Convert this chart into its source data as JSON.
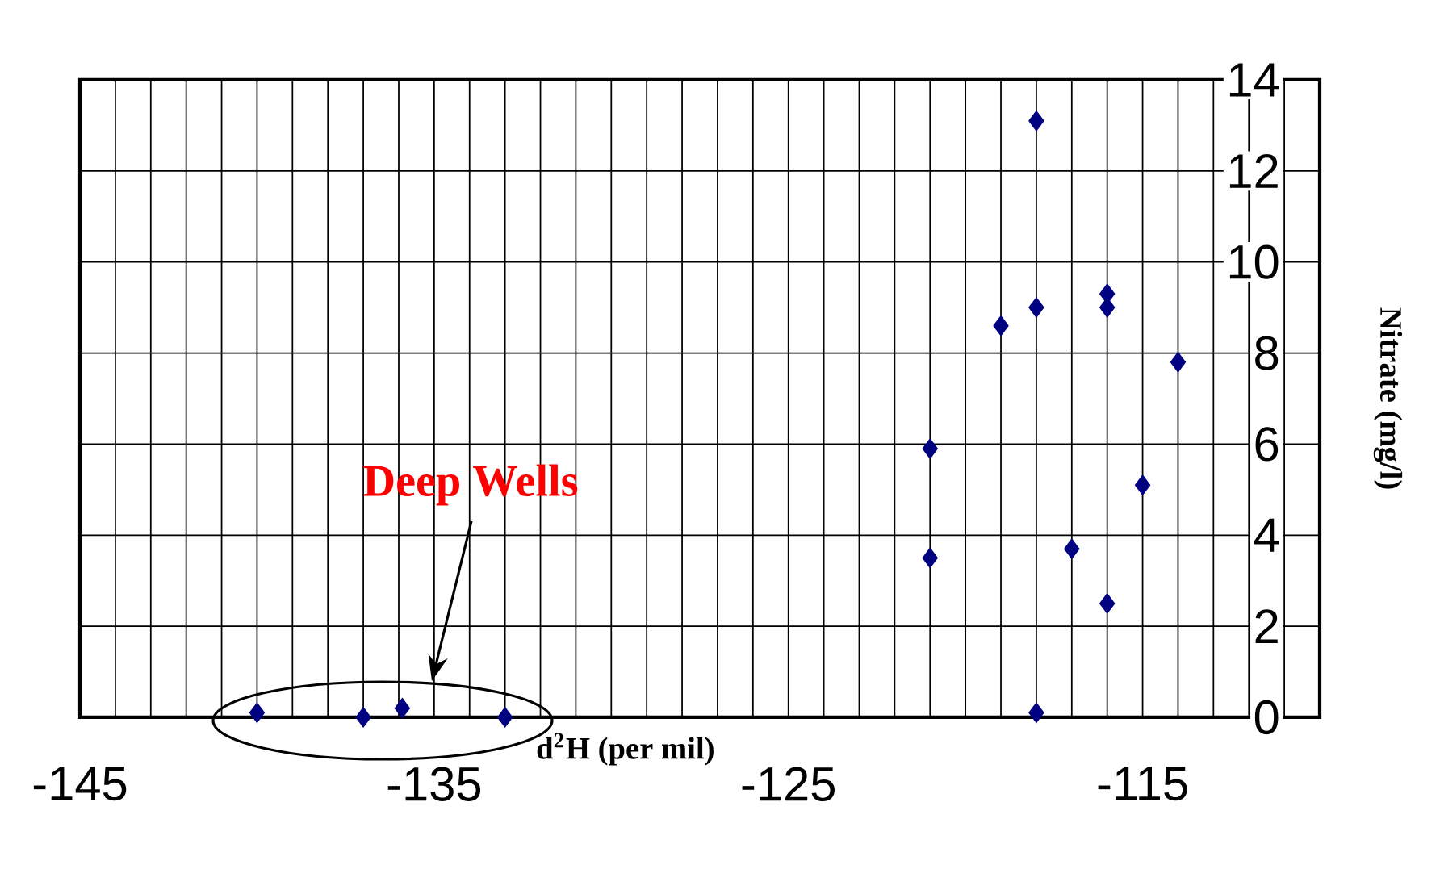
{
  "chart_data": {
    "type": "scatter",
    "xlabel": "d$^{2}$H (per mil)",
    "ylabel": "Nitrate (mg/l)",
    "x": [
      -140,
      -137,
      -135.9,
      -133,
      -121,
      -121,
      -119,
      -118,
      -118,
      -118,
      -117,
      -116,
      -116,
      -116,
      -115,
      -114
    ],
    "values": [
      0.1,
      0,
      0.2,
      0,
      5.9,
      3.5,
      8.6,
      13.1,
      9.0,
      0.1,
      3.7,
      9.3,
      9.0,
      2.5,
      5.1,
      7.8
    ],
    "color": "#000080",
    "marker": "diamond",
    "grid": true,
    "xlim": [
      -145,
      -110
    ],
    "xticks": [
      -145,
      {
        "value": -144,
        "label": null
      },
      {
        "value": -143,
        "label": null
      },
      {
        "value": -142,
        "label": null
      },
      {
        "value": -141,
        "label": null
      },
      {
        "value": -140,
        "label": null
      },
      {
        "value": -139,
        "label": null
      },
      {
        "value": -138,
        "label": null
      },
      {
        "value": -137,
        "label": null
      },
      {
        "value": -136,
        "label": null
      },
      -135,
      {
        "value": -134,
        "label": null
      },
      {
        "value": -133,
        "label": null
      },
      {
        "value": -132,
        "label": null
      },
      {
        "value": -131,
        "label": null
      },
      {
        "value": -130,
        "label": null
      },
      {
        "value": -129,
        "label": null
      },
      {
        "value": -128,
        "label": null
      },
      {
        "value": -127,
        "label": null
      },
      {
        "value": -126,
        "label": null
      },
      -125,
      {
        "value": -124,
        "label": null
      },
      {
        "value": -123,
        "label": null
      },
      {
        "value": -122,
        "label": null
      },
      {
        "value": -121,
        "label": null
      },
      {
        "value": -120,
        "label": null
      },
      {
        "value": -119,
        "label": null
      },
      {
        "value": -118,
        "label": null
      },
      {
        "value": -117,
        "label": null
      },
      {
        "value": -116,
        "label": null
      },
      -115,
      {
        "value": -114,
        "label": null
      },
      {
        "value": -113,
        "label": null
      },
      {
        "value": -112,
        "label": null
      },
      {
        "value": -111,
        "label": null
      },
      {
        "value": -110,
        "label": null
      }
    ],
    "ylim": [
      0,
      14
    ],
    "yticks": [
      0,
      2,
      4,
      6,
      8,
      10,
      12,
      14
    ],
    "annotations": [
      "Deep Wells"
    ]
  }
}
